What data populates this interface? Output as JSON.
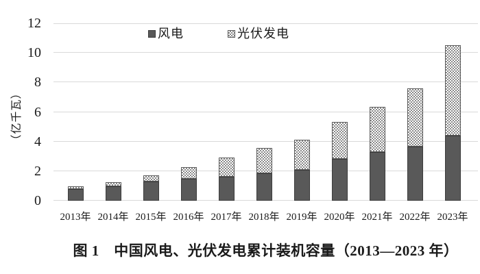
{
  "chart_data": {
    "type": "bar",
    "stacked": true,
    "caption": "图 1　中国风电、光伏发电累计装机容量（2013—2023 年）",
    "ylabel": "（亿千瓦）",
    "unit": "亿千瓦",
    "ylim": [
      0,
      12
    ],
    "yticks": [
      0,
      2,
      4,
      6,
      8,
      10,
      12
    ],
    "grid": true,
    "legend_position": "top-center",
    "categories": [
      "2013年",
      "2014年",
      "2015年",
      "2016年",
      "2017年",
      "2018年",
      "2019年",
      "2020年",
      "2021年",
      "2022年",
      "2023年"
    ],
    "series": [
      {
        "name": "风电",
        "pattern": "solid",
        "values": [
          0.77,
          0.96,
          1.29,
          1.49,
          1.64,
          1.84,
          2.1,
          2.81,
          3.28,
          3.65,
          4.41
        ]
      },
      {
        "name": "光伏发电",
        "pattern": "checker",
        "values": [
          0.19,
          0.28,
          0.43,
          0.77,
          1.3,
          1.74,
          2.04,
          2.53,
          3.06,
          3.93,
          6.09
        ]
      }
    ]
  },
  "colors": {
    "wind_fill": "#595959",
    "wind_border": "#3b3b3b",
    "pv_dot": "#8a8a8a",
    "pv_bg": "#ffffff",
    "pv_border": "#595959",
    "gridline": "#d9d9d9",
    "text": "#1a1a1a",
    "background": "#ffffff"
  }
}
